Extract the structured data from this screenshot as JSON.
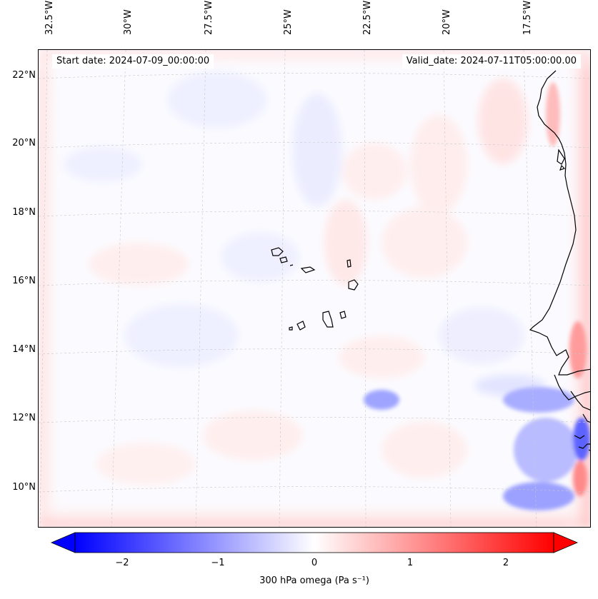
{
  "header": {
    "start_date": "Start date: 2024-07-09_00:00:00",
    "valid_date": "Valid_date: 2024-07-11T05:00:00.00"
  },
  "axes": {
    "lon_labels": [
      "32.5°W",
      "30°W",
      "27.5°W",
      "25°W",
      "22.5°W",
      "20°W",
      "17.5°W"
    ],
    "lat_labels": [
      "22°N",
      "20°N",
      "18°N",
      "16°N",
      "14°N",
      "12°N",
      "10°N"
    ]
  },
  "colorbar": {
    "label": "300 hPa omega (Pa s⁻¹)",
    "ticks": [
      "−2",
      "−1",
      "0",
      "1",
      "2"
    ],
    "tick_values": [
      -2,
      -1,
      0,
      1,
      2
    ],
    "range": [
      -2.6,
      2.6
    ],
    "low_color": "#0000ff",
    "high_color": "#ff0000",
    "extend": "both"
  },
  "map": {
    "projection": "Lambert conformal",
    "gridlines": "dashed light gray",
    "coastline_color": "#000000",
    "field": "300 hPa omega"
  }
}
